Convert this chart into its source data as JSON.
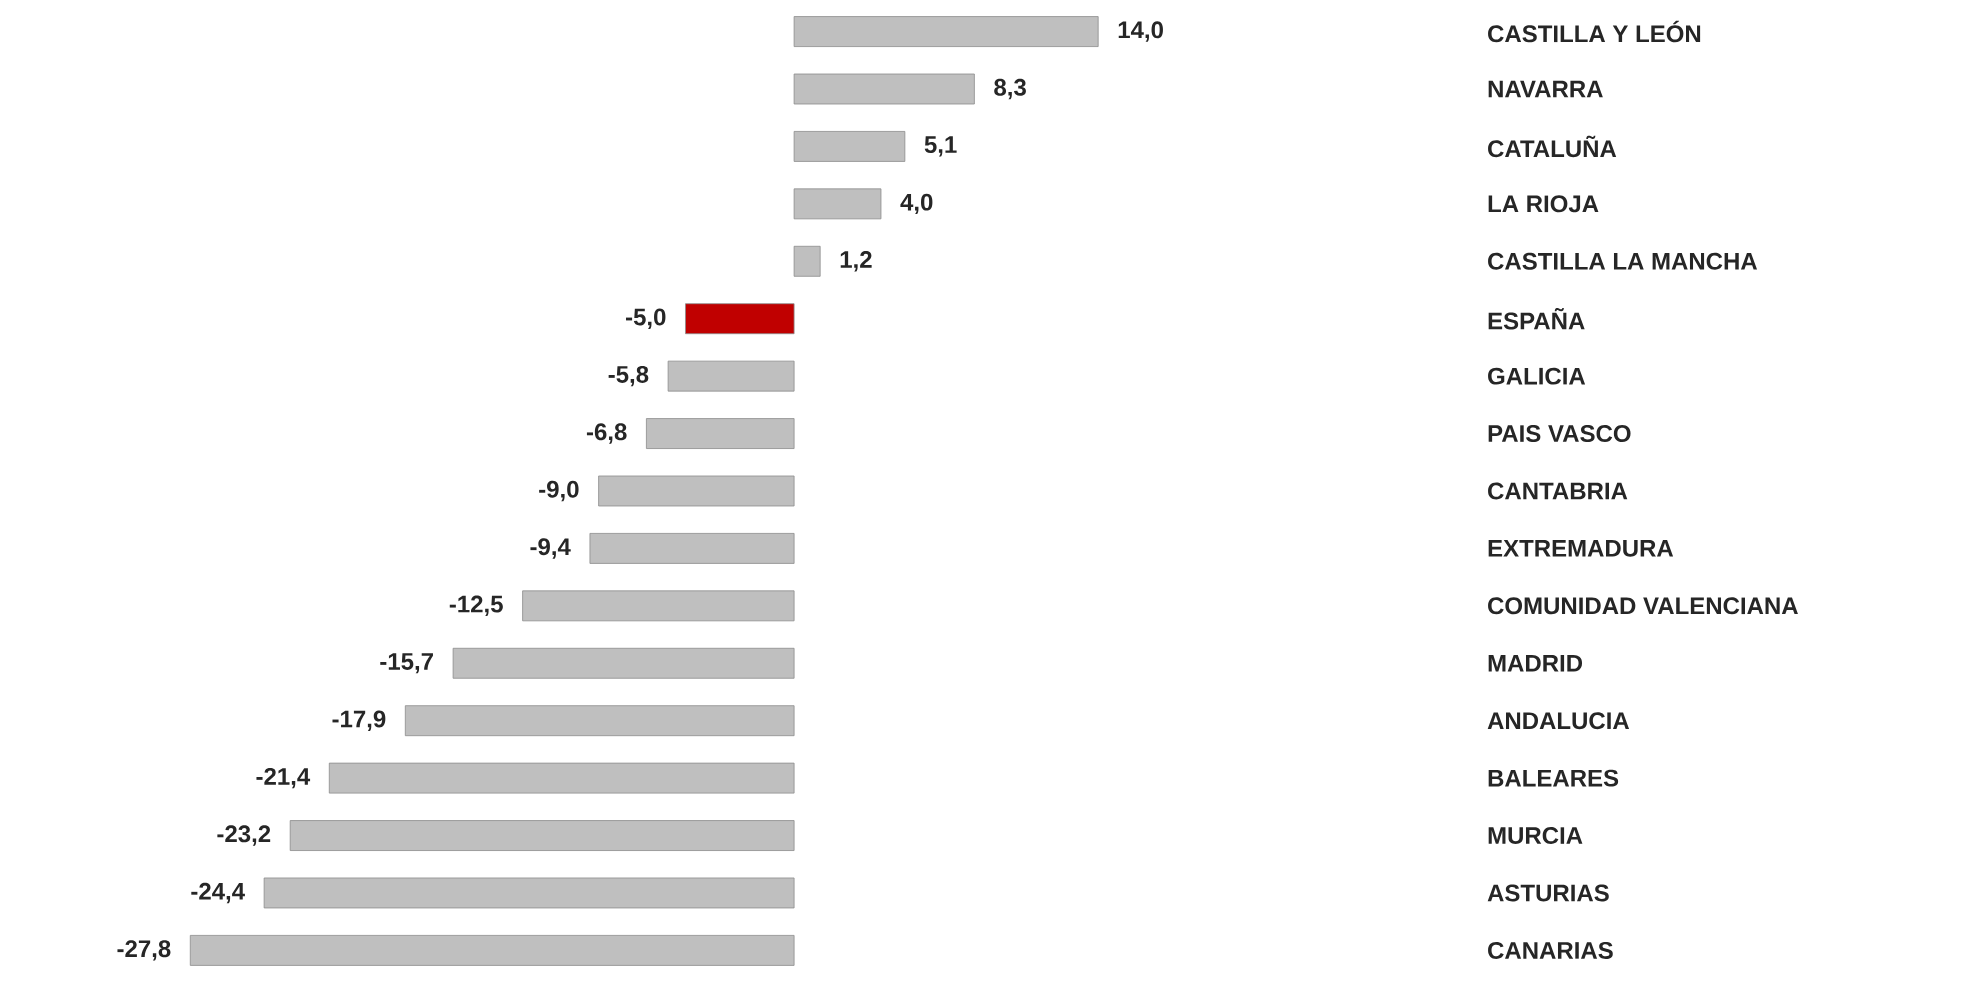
{
  "chart_data": {
    "type": "bar",
    "orientation": "horizontal",
    "categories": [
      "CASTILLA Y LEÓN",
      "NAVARRA",
      "CATALUÑA",
      "LA RIOJA",
      "CASTILLA LA MANCHA",
      "ESPAÑA",
      "GALICIA",
      "PAIS VASCO",
      "CANTABRIA",
      "EXTREMADURA",
      "COMUNIDAD VALENCIANA",
      "MADRID",
      "ANDALUCIA",
      "BALEARES",
      "MURCIA",
      "ASTURIAS",
      "CANARIAS"
    ],
    "values": [
      14.0,
      8.3,
      5.1,
      4.0,
      1.2,
      -5.0,
      -5.8,
      -6.8,
      -9.0,
      -9.4,
      -12.5,
      -15.7,
      -17.9,
      -21.4,
      -23.2,
      -24.4,
      -27.8
    ],
    "value_labels": [
      "14,0",
      "8,3",
      "5,1",
      "4,0",
      "1,2",
      "-5,0",
      "-5,8",
      "-6,8",
      "-9,0",
      "-9,4",
      "-12,5",
      "-15,7",
      "-17,9",
      "-21,4",
      "-23,2",
      "-24,4",
      "-27,8"
    ],
    "colors": [
      "#bfbfbf",
      "#bfbfbf",
      "#bfbfbf",
      "#bfbfbf",
      "#bfbfbf",
      "#c00000",
      "#bfbfbf",
      "#bfbfbf",
      "#bfbfbf",
      "#bfbfbf",
      "#bfbfbf",
      "#bfbfbf",
      "#bfbfbf",
      "#bfbfbf",
      "#bfbfbf",
      "#bfbfbf",
      "#bfbfbf"
    ]
  }
}
